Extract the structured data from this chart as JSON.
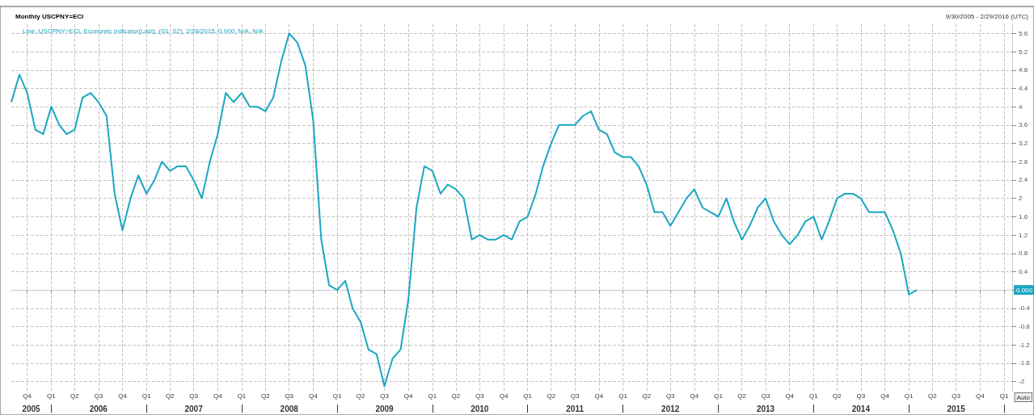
{
  "chart_data": {
    "type": "line",
    "title": "Monthly USCPNY=ECI",
    "subtitle": "9/30/2005 - 2/29/2016 (UTC)",
    "x": [
      "2005-08",
      "2005-09",
      "2005-10",
      "2005-11",
      "2005-12",
      "2006-01",
      "2006-02",
      "2006-03",
      "2006-04",
      "2006-05",
      "2006-06",
      "2006-07",
      "2006-08",
      "2006-09",
      "2006-10",
      "2006-11",
      "2006-12",
      "2007-01",
      "2007-02",
      "2007-03",
      "2007-04",
      "2007-05",
      "2007-06",
      "2007-07",
      "2007-08",
      "2007-09",
      "2007-10",
      "2007-11",
      "2007-12",
      "2008-01",
      "2008-02",
      "2008-03",
      "2008-04",
      "2008-05",
      "2008-06",
      "2008-07",
      "2008-08",
      "2008-09",
      "2008-10",
      "2008-11",
      "2008-12",
      "2009-01",
      "2009-02",
      "2009-03",
      "2009-04",
      "2009-05",
      "2009-06",
      "2009-07",
      "2009-08",
      "2009-09",
      "2009-10",
      "2009-11",
      "2009-12",
      "2010-01",
      "2010-02",
      "2010-03",
      "2010-04",
      "2010-05",
      "2010-06",
      "2010-07",
      "2010-08",
      "2010-09",
      "2010-10",
      "2010-11",
      "2010-12",
      "2011-01",
      "2011-02",
      "2011-03",
      "2011-04",
      "2011-05",
      "2011-06",
      "2011-07",
      "2011-08",
      "2011-09",
      "2011-10",
      "2011-11",
      "2011-12",
      "2012-01",
      "2012-02",
      "2012-03",
      "2012-04",
      "2012-05",
      "2012-06",
      "2012-07",
      "2012-08",
      "2012-09",
      "2012-10",
      "2012-11",
      "2012-12",
      "2013-01",
      "2013-02",
      "2013-03",
      "2013-04",
      "2013-05",
      "2013-06",
      "2013-07",
      "2013-08",
      "2013-09",
      "2013-10",
      "2013-11",
      "2013-12",
      "2014-01",
      "2014-02",
      "2014-03",
      "2014-04",
      "2014-05",
      "2014-06",
      "2014-07",
      "2014-08",
      "2014-09",
      "2014-10",
      "2014-11",
      "2014-12",
      "2015-01",
      "2015-02"
    ],
    "series": [
      {
        "name": "Line, USCPNY=ECI, Economic Indicator(Last), (S1, S2), 2/28/2015, 0.000, N/A, N/A",
        "color": "#1aa7c1",
        "values": [
          4.1,
          4.7,
          4.3,
          3.5,
          3.4,
          4.0,
          3.6,
          3.4,
          3.5,
          4.2,
          4.3,
          4.1,
          3.8,
          2.1,
          1.3,
          2.0,
          2.5,
          2.1,
          2.4,
          2.8,
          2.6,
          2.7,
          2.7,
          2.4,
          2.0,
          2.8,
          3.4,
          4.3,
          4.1,
          4.3,
          4.0,
          4.0,
          3.9,
          4.2,
          5.0,
          5.6,
          5.4,
          4.9,
          3.7,
          1.1,
          0.1,
          0.0,
          0.2,
          -0.4,
          -0.7,
          -1.3,
          -1.4,
          -2.1,
          -1.5,
          -1.3,
          -0.2,
          1.8,
          2.7,
          2.6,
          2.1,
          2.3,
          2.2,
          2.0,
          1.1,
          1.2,
          1.1,
          1.1,
          1.2,
          1.1,
          1.5,
          1.6,
          2.1,
          2.7,
          3.2,
          3.6,
          3.6,
          3.6,
          3.8,
          3.9,
          3.5,
          3.4,
          3.0,
          2.9,
          2.9,
          2.7,
          2.3,
          1.7,
          1.7,
          1.4,
          1.7,
          2.0,
          2.2,
          1.8,
          1.7,
          1.6,
          2.0,
          1.5,
          1.1,
          1.4,
          1.8,
          2.0,
          1.5,
          1.2,
          1.0,
          1.2,
          1.5,
          1.6,
          1.1,
          1.5,
          2.0,
          2.1,
          2.1,
          2.0,
          1.7,
          1.7,
          1.7,
          1.3,
          0.8,
          -0.1,
          0.0
        ]
      }
    ],
    "xlim": [
      "2005-08",
      "2016-02"
    ],
    "xticks": [
      {
        "value": "2005-10",
        "label": "Q4"
      },
      {
        "value": "2006-01",
        "label": "Q1"
      },
      {
        "value": "2006-04",
        "label": "Q2"
      },
      {
        "value": "2006-07",
        "label": "Q3"
      },
      {
        "value": "2006-10",
        "label": "Q4"
      },
      {
        "value": "2007-01",
        "label": "Q1"
      },
      {
        "value": "2007-04",
        "label": "Q2"
      },
      {
        "value": "2007-07",
        "label": "Q3"
      },
      {
        "value": "2007-10",
        "label": "Q4"
      },
      {
        "value": "2008-01",
        "label": "Q1"
      },
      {
        "value": "2008-04",
        "label": "Q2"
      },
      {
        "value": "2008-07",
        "label": "Q3"
      },
      {
        "value": "2008-10",
        "label": "Q4"
      },
      {
        "value": "2009-01",
        "label": "Q1"
      },
      {
        "value": "2009-04",
        "label": "Q2"
      },
      {
        "value": "2009-07",
        "label": "Q3"
      },
      {
        "value": "2009-10",
        "label": "Q4"
      },
      {
        "value": "2010-01",
        "label": "Q1"
      },
      {
        "value": "2010-04",
        "label": "Q2"
      },
      {
        "value": "2010-07",
        "label": "Q3"
      },
      {
        "value": "2010-10",
        "label": "Q4"
      },
      {
        "value": "2011-01",
        "label": "Q1"
      },
      {
        "value": "2011-04",
        "label": "Q2"
      },
      {
        "value": "2011-07",
        "label": "Q3"
      },
      {
        "value": "2011-10",
        "label": "Q4"
      },
      {
        "value": "2012-01",
        "label": "Q1"
      },
      {
        "value": "2012-04",
        "label": "Q2"
      },
      {
        "value": "2012-07",
        "label": "Q3"
      },
      {
        "value": "2012-10",
        "label": "Q4"
      },
      {
        "value": "2013-01",
        "label": "Q1"
      },
      {
        "value": "2013-04",
        "label": "Q2"
      },
      {
        "value": "2013-07",
        "label": "Q3"
      },
      {
        "value": "2013-10",
        "label": "Q4"
      },
      {
        "value": "2014-01",
        "label": "Q1"
      },
      {
        "value": "2014-04",
        "label": "Q2"
      },
      {
        "value": "2014-07",
        "label": "Q3"
      },
      {
        "value": "2014-10",
        "label": "Q4"
      },
      {
        "value": "2015-01",
        "label": "Q1"
      },
      {
        "value": "2015-04",
        "label": "Q2"
      },
      {
        "value": "2015-07",
        "label": "Q3"
      },
      {
        "value": "2015-10",
        "label": "Q4"
      },
      {
        "value": "2016-01",
        "label": "Q1"
      }
    ],
    "x2lim": [
      "2005-08",
      "2016-02"
    ],
    "x2ticks": [
      {
        "value": "2005-10-16",
        "label": "2005"
      },
      {
        "value": "2006-01",
        "label": null
      },
      {
        "value": "2006-07",
        "label": "2006"
      },
      {
        "value": "2007-01",
        "label": null
      },
      {
        "value": "2007-07",
        "label": "2007"
      },
      {
        "value": "2008-01",
        "label": null
      },
      {
        "value": "2008-07",
        "label": "2008"
      },
      {
        "value": "2009-01",
        "label": null
      },
      {
        "value": "2009-07",
        "label": "2009"
      },
      {
        "value": "2010-01",
        "label": null
      },
      {
        "value": "2010-07",
        "label": "2010"
      },
      {
        "value": "2011-01",
        "label": null
      },
      {
        "value": "2011-07",
        "label": "2011"
      },
      {
        "value": "2012-01",
        "label": null
      },
      {
        "value": "2012-07",
        "label": "2012"
      },
      {
        "value": "2013-01",
        "label": null
      },
      {
        "value": "2013-07",
        "label": "2013"
      },
      {
        "value": "2014-01",
        "label": null
      },
      {
        "value": "2014-07",
        "label": "2014"
      },
      {
        "value": "2015-01",
        "label": null
      },
      {
        "value": "2015-07",
        "label": "2015"
      },
      {
        "value": "2016-01",
        "label": null
      }
    ],
    "ylim": [
      -2.2,
      5.8
    ],
    "yticks": [
      -2,
      -1.6,
      -1.2,
      -0.8,
      -0.4,
      {
        "value": 0,
        "label": null
      },
      0.4,
      0.8,
      1.2,
      1.6,
      2,
      2.4,
      2.8,
      3.2,
      3.6,
      4,
      4.4,
      4.8,
      5.2,
      5.6
    ],
    "annotations": [
      "0.000",
      "Auto"
    ],
    "grid": true,
    "legend": "top left",
    "marker": "none",
    "line_style": "solid"
  }
}
